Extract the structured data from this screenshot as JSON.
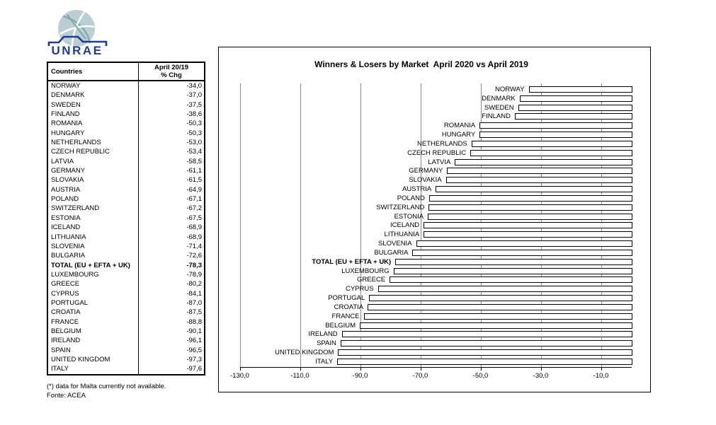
{
  "logo": {
    "text": "UNRAE",
    "globe_color": "#b9cfd3",
    "brand_color": "#223a8f"
  },
  "table": {
    "header": {
      "col1": "Countries",
      "col2_line1": "April 20/19",
      "col2_line2": "% Chg"
    }
  },
  "chart_data": {
    "type": "bar",
    "orientation": "horizontal",
    "title": "Winners & Losers by Market  April 2020 vs April 2019",
    "categories": [
      "NORWAY",
      "DENMARK",
      "SWEDEN",
      "FINLAND",
      "ROMANIA",
      "HUNGARY",
      "NETHERLANDS",
      "CZECH REPUBLIC",
      "LATVIA",
      "GERMANY",
      "SLOVAKIA",
      "AUSTRIA",
      "POLAND",
      "SWITZERLAND",
      "ESTONIA",
      "ICELAND",
      "LITHUANIA",
      "SLOVENIA",
      "BULGARIA",
      "TOTAL (EU + EFTA + UK)",
      "LUXEMBOURG",
      "GREECE",
      "CYPRUS",
      "PORTUGAL",
      "CROATIA",
      "FRANCE",
      "BELGIUM",
      "IRELAND",
      "SPAIN",
      "UNITED KINGDOM",
      "ITALY"
    ],
    "values": [
      -34.0,
      -37.0,
      -37.5,
      -38.6,
      -50.3,
      -50.3,
      -53.0,
      -53.4,
      -58.5,
      -61.1,
      -61.5,
      -64.9,
      -67.1,
      -67.2,
      -67.5,
      -68.9,
      -68.9,
      -71.4,
      -72.6,
      -78.3,
      -78.9,
      -80.2,
      -84.1,
      -87.0,
      -87.5,
      -88.8,
      -90.1,
      -96.1,
      -96.5,
      -97.3,
      -97.6
    ],
    "value_labels": [
      "-34,0",
      "-37,0",
      "-37,5",
      "-38,6",
      "-50,3",
      "-50,3",
      "-53,0",
      "-53,4",
      "-58,5",
      "-61,1",
      "-61,5",
      "-64,9",
      "-67,1",
      "-67,2",
      "-67,5",
      "-68,9",
      "-68,9",
      "-71,4",
      "-72,6",
      "-78,3",
      "-78,9",
      "-80,2",
      "-84,1",
      "-87,0",
      "-87,5",
      "-88,8",
      "-90,1",
      "-96,1",
      "-96,5",
      "-97,3",
      "-97,6"
    ],
    "total_index": 19,
    "xticks": [
      -130,
      -110,
      -90,
      -70,
      -50,
      -30,
      -10
    ],
    "xtick_labels": [
      "-130,0",
      "-110,0",
      "-90,0",
      "-70,0",
      "-50,0",
      "-30,0",
      "-10,0"
    ],
    "xlim": [
      -137,
      0
    ],
    "grid": true,
    "legend": "none",
    "bar_fill": "#ffffff",
    "bar_border": "#000000",
    "gridline_color": "#8c8c8c"
  },
  "footnotes": {
    "malta": "(*) data for Malta currently not available.",
    "source": "Fonte: ACEA"
  }
}
